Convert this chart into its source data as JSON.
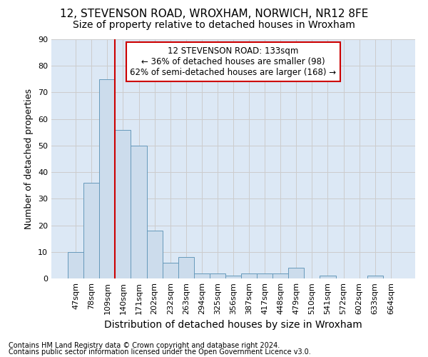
{
  "title1": "12, STEVENSON ROAD, WROXHAM, NORWICH, NR12 8FE",
  "title2": "Size of property relative to detached houses in Wroxham",
  "xlabel": "Distribution of detached houses by size in Wroxham",
  "ylabel": "Number of detached properties",
  "footnote1": "Contains HM Land Registry data © Crown copyright and database right 2024.",
  "footnote2": "Contains public sector information licensed under the Open Government Licence v3.0.",
  "bar_labels": [
    "47sqm",
    "78sqm",
    "109sqm",
    "140sqm",
    "171sqm",
    "202sqm",
    "232sqm",
    "263sqm",
    "294sqm",
    "325sqm",
    "356sqm",
    "387sqm",
    "417sqm",
    "448sqm",
    "479sqm",
    "510sqm",
    "541sqm",
    "572sqm",
    "602sqm",
    "633sqm",
    "664sqm"
  ],
  "bar_values": [
    10,
    36,
    75,
    56,
    50,
    18,
    6,
    8,
    2,
    2,
    1,
    2,
    2,
    2,
    4,
    0,
    1,
    0,
    0,
    1,
    0
  ],
  "bar_color": "#ccdcec",
  "bar_edge_color": "#6699bb",
  "property_line_label": "12 STEVENSON ROAD: 133sqm",
  "annotation_line1": "← 36% of detached houses are smaller (98)",
  "annotation_line2": "62% of semi-detached houses are larger (168) →",
  "annotation_box_facecolor": "#ffffff",
  "annotation_box_edgecolor": "#cc0000",
  "vline_color": "#cc0000",
  "vline_x": 3.0,
  "ylim": [
    0,
    90
  ],
  "yticks": [
    0,
    10,
    20,
    30,
    40,
    50,
    60,
    70,
    80,
    90
  ],
  "grid_color": "#cccccc",
  "bg_color": "#dce8f5",
  "title_fontsize": 11,
  "subtitle_fontsize": 10,
  "annot_fontsize": 8.5,
  "ylabel_fontsize": 9,
  "xlabel_fontsize": 10,
  "tick_fontsize": 8,
  "footnote_fontsize": 7
}
